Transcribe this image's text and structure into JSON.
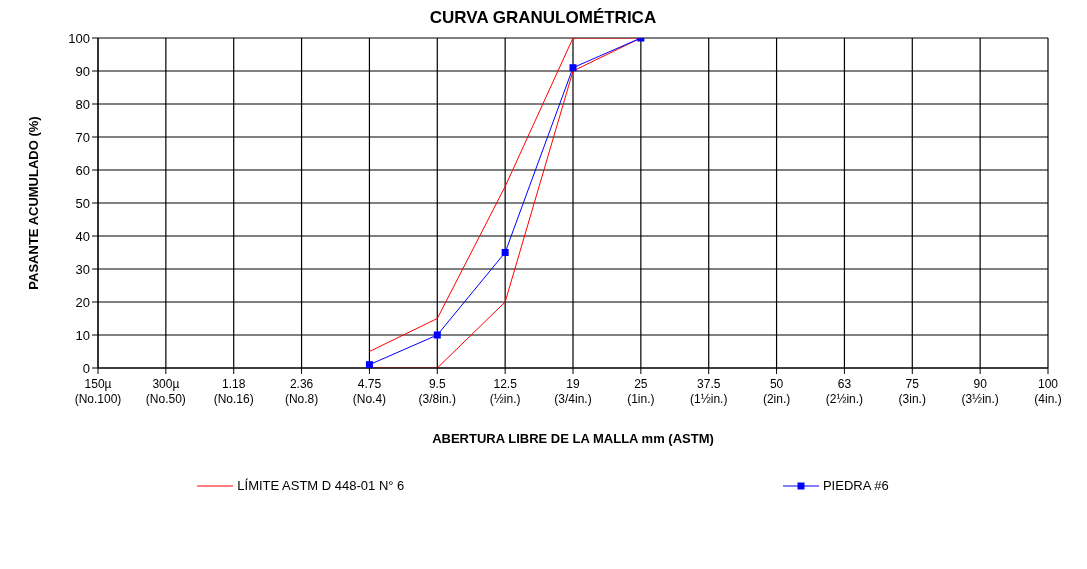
{
  "chart_data": {
    "type": "line",
    "title": "CURVA GRANULOMÉTRICA",
    "xlabel": "ABERTURA LIBRE DE LA MALLA mm (ASTM)",
    "ylabel": "PASANTE ACUMULADO (%)",
    "categories": [
      "150µ\n(No.100)",
      "300µ\n(No.50)",
      "1.18\n(No.16)",
      "2.36\n(No.8)",
      "4.75\n(No.4)",
      "9.5\n(3/8in.)",
      "12.5\n(½in.)",
      "19\n(3/4in.)",
      "25\n(1in.)",
      "37.5\n(1½in.)",
      "50\n(2in.)",
      "63\n(2½in.)",
      "75\n(3in.)",
      "90\n(3½in.)",
      "100\n(4in.)"
    ],
    "series": [
      {
        "name": "LÍMITE ASTM D 448-01 N° 6",
        "color": "#ff0000",
        "marker": "none",
        "values": [
          null,
          null,
          null,
          null,
          5,
          15,
          55,
          100,
          100,
          null,
          null,
          null,
          null,
          null,
          null
        ]
      },
      {
        "color": "#ff0000",
        "marker": "none",
        "values": [
          null,
          null,
          null,
          null,
          0,
          0,
          20,
          90,
          100,
          null,
          null,
          null,
          null,
          null,
          null
        ]
      },
      {
        "name": "PIEDRA #6",
        "color": "#0000ff",
        "marker": "square",
        "values": [
          null,
          null,
          null,
          null,
          1,
          10,
          35,
          91,
          100,
          null,
          null,
          null,
          null,
          null,
          null
        ]
      }
    ],
    "ylim": [
      0,
      100
    ],
    "yticks": [
      0,
      10,
      20,
      30,
      40,
      50,
      60,
      70,
      80,
      90,
      100
    ],
    "grid": true,
    "legend": "bottom",
    "line_style": "solid"
  }
}
